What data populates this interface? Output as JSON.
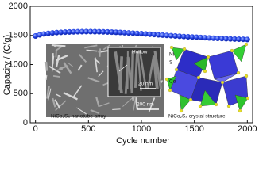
{
  "chart_data": {
    "type": "scatter",
    "x_label": "Cycle number",
    "y_label": "Capacity / (C/g)",
    "x": [
      0,
      40,
      80,
      120,
      160,
      200,
      240,
      280,
      320,
      360,
      400,
      440,
      480,
      520,
      560,
      600,
      640,
      680,
      720,
      760,
      800,
      840,
      880,
      920,
      960,
      1000,
      1040,
      1080,
      1120,
      1160,
      1200,
      1240,
      1280,
      1320,
      1360,
      1400,
      1440,
      1480,
      1520,
      1560,
      1600,
      1640,
      1680,
      1720,
      1760,
      1800,
      1840,
      1880,
      1920,
      1960,
      2000
    ],
    "series": [
      {
        "color": "#1b3ee0",
        "values": [
          1490,
          1510,
          1525,
          1535,
          1542,
          1548,
          1552,
          1556,
          1559,
          1561,
          1563,
          1564,
          1565,
          1565,
          1564,
          1563,
          1561,
          1559,
          1556,
          1553,
          1550,
          1546,
          1542,
          1538,
          1534,
          1530,
          1525,
          1520,
          1515,
          1510,
          1505,
          1500,
          1495,
          1490,
          1485,
          1480,
          1476,
          1472,
          1468,
          1464,
          1460,
          1456,
          1452,
          1449,
          1446,
          1443,
          1440,
          1437,
          1435,
          1433,
          1430
        ]
      }
    ],
    "xlim": [
      -50,
      2050
    ],
    "ylim": [
      0,
      2000
    ],
    "xticks": [
      0,
      500,
      1000,
      1500,
      2000
    ],
    "yticks": [
      0,
      500,
      1000,
      1500,
      2000
    ],
    "annotations": [
      "Hollow",
      "20 nm",
      "200 nm",
      "NiCo₂S₄ nanotube array",
      "NiCo₂S₄ crystal structure",
      "Ni",
      "S",
      "Co"
    ]
  }
}
